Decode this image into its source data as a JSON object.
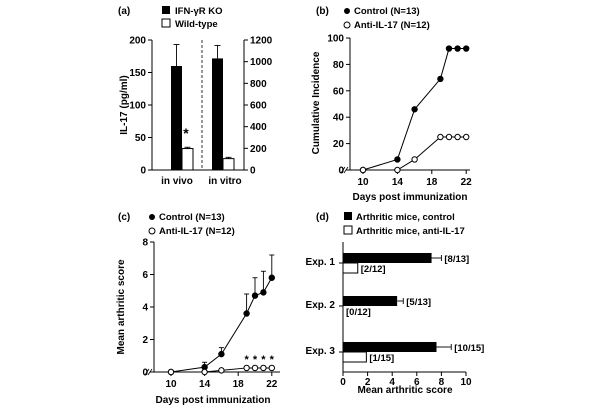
{
  "chart_data": [
    {
      "panel": "(a)",
      "type": "bar",
      "ylabel": "IL-17 (pg/ml)",
      "ylim_left": [
        0,
        200
      ],
      "yticks_left": [
        "0",
        "50",
        "100",
        "150",
        "200"
      ],
      "ylim_right": [
        0,
        1200
      ],
      "yticks_right": [
        "0",
        "200",
        "400",
        "600",
        "800",
        "1000",
        "1200"
      ],
      "legend": [
        "IFN-γR KO",
        "Wild-type"
      ],
      "categories": [
        "in vivo",
        "in vitro"
      ],
      "series": [
        {
          "name": "IFN-γR KO",
          "values": [
            160,
            1030
          ],
          "errors": [
            33,
            120
          ]
        },
        {
          "name": "Wild-type",
          "values": [
            33,
            105
          ],
          "errors": [
            2,
            12
          ]
        }
      ],
      "axis_for_category": [
        "left",
        "right"
      ],
      "annotations": [
        {
          "text": "*",
          "category": "in vivo"
        }
      ]
    },
    {
      "panel": "(b)",
      "type": "line",
      "xlabel": "Days post immunization",
      "ylabel": "Cumulative Incidence",
      "ylim": [
        0,
        100
      ],
      "yticks": [
        "0",
        "20",
        "40",
        "60",
        "80",
        "100"
      ],
      "xticks": [
        "10",
        "14",
        "18",
        "22"
      ],
      "series": [
        {
          "name": "Control (N=13)",
          "marker": "filled",
          "x": [
            10,
            14,
            16,
            19,
            20,
            21,
            22
          ],
          "y": [
            0,
            8,
            46,
            69,
            92,
            92,
            92
          ]
        },
        {
          "name": "Anti-IL-17 (N=12)",
          "marker": "open",
          "x": [
            10,
            14,
            16,
            19,
            20,
            21,
            22
          ],
          "y": [
            0,
            0,
            8,
            25,
            25,
            25,
            25
          ]
        }
      ]
    },
    {
      "panel": "(c)",
      "type": "line",
      "xlabel": "Days post immunization",
      "ylabel": "Mean arthritic score",
      "ylim": [
        0,
        8
      ],
      "yticks": [
        "0",
        "2",
        "4",
        "6",
        "8"
      ],
      "xticks": [
        "10",
        "14",
        "18",
        "22"
      ],
      "series": [
        {
          "name": "Control (N=13)",
          "marker": "filled",
          "x": [
            10,
            14,
            16,
            19,
            20,
            21,
            22
          ],
          "y": [
            0,
            0.3,
            1.1,
            3.6,
            4.7,
            4.9,
            5.8
          ],
          "errors": [
            0,
            0.3,
            0.4,
            1.2,
            1.1,
            1.3,
            1.4
          ]
        },
        {
          "name": "Anti-IL-17 (N=12)",
          "marker": "open",
          "x": [
            10,
            14,
            16,
            19,
            20,
            21,
            22
          ],
          "y": [
            0,
            0,
            0.1,
            0.25,
            0.25,
            0.25,
            0.25
          ],
          "errors": [
            0,
            0,
            0.05,
            0.1,
            0.1,
            0.1,
            0.1
          ]
        }
      ],
      "annotations": [
        {
          "text": "*",
          "x": [
            19,
            20,
            21,
            22
          ]
        }
      ]
    },
    {
      "panel": "(d)",
      "type": "bar",
      "orientation": "horizontal",
      "xlabel": "Mean arthritic score",
      "xlim": [
        0,
        10
      ],
      "xticks": [
        "0",
        "2",
        "4",
        "6",
        "8",
        "10"
      ],
      "categories": [
        "Exp. 1",
        "Exp. 2",
        "Exp. 3"
      ],
      "series": [
        {
          "name": "Arthritic mice, control",
          "values": [
            7.2,
            4.4,
            7.6
          ],
          "errors": [
            0.8,
            0.5,
            1.2
          ],
          "labels": [
            "[8/13]",
            "[5/13]",
            "[10/15]"
          ]
        },
        {
          "name": "Arthritic mice, anti-IL-17",
          "values": [
            1.2,
            0,
            1.9
          ],
          "errors": [
            0,
            0,
            0
          ],
          "labels": [
            "[2/12]",
            "[0/12]",
            "[1/15]"
          ]
        }
      ]
    }
  ]
}
